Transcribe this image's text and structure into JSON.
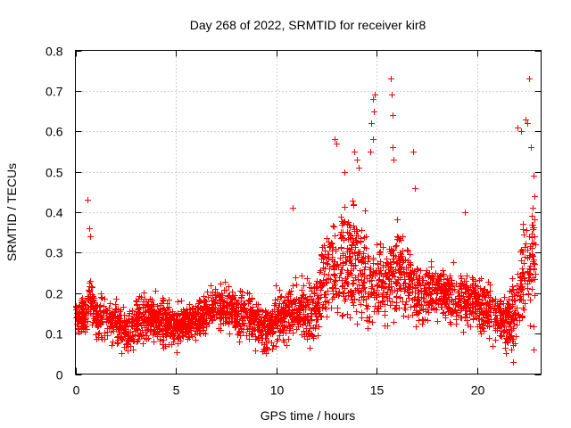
{
  "chart_data": {
    "type": "scatter",
    "title": "Day 268 of 2022, SRMTID for receiver kir8",
    "xlabel": "GPS time / hours",
    "ylabel": "SRMTID / TECUs",
    "xlim": [
      0,
      23.2
    ],
    "ylim": [
      0,
      0.8
    ],
    "xticks": [
      0,
      5,
      10,
      15,
      20
    ],
    "yticks": [
      0,
      0.1,
      0.2,
      0.3,
      0.4,
      0.5,
      0.6,
      0.7,
      0.8
    ],
    "grid": true,
    "marker": "+",
    "color": "#ff0000",
    "series": [
      {
        "name": "SRMTID",
        "trend": [
          [
            0.0,
            0.14
          ],
          [
            0.5,
            0.14
          ],
          [
            0.7,
            0.2
          ],
          [
            1.0,
            0.14
          ],
          [
            2.0,
            0.13
          ],
          [
            2.5,
            0.1
          ],
          [
            3.0,
            0.13
          ],
          [
            4.0,
            0.14
          ],
          [
            5.0,
            0.12
          ],
          [
            6.0,
            0.13
          ],
          [
            7.0,
            0.17
          ],
          [
            8.0,
            0.15
          ],
          [
            9.0,
            0.13
          ],
          [
            9.5,
            0.11
          ],
          [
            10.0,
            0.14
          ],
          [
            11.0,
            0.16
          ],
          [
            11.5,
            0.14
          ],
          [
            12.0,
            0.17
          ],
          [
            12.5,
            0.25
          ],
          [
            13.0,
            0.28
          ],
          [
            14.0,
            0.28
          ],
          [
            14.5,
            0.24
          ],
          [
            15.0,
            0.22
          ],
          [
            15.5,
            0.23
          ],
          [
            16.0,
            0.26
          ],
          [
            17.0,
            0.2
          ],
          [
            18.0,
            0.2
          ],
          [
            19.0,
            0.18
          ],
          [
            20.0,
            0.18
          ],
          [
            21.0,
            0.14
          ],
          [
            21.5,
            0.12
          ],
          [
            22.0,
            0.17
          ],
          [
            22.5,
            0.28
          ],
          [
            22.9,
            0.3
          ]
        ],
        "spread": [
          [
            0.0,
            0.04
          ],
          [
            2.0,
            0.05
          ],
          [
            5.0,
            0.05
          ],
          [
            7.0,
            0.05
          ],
          [
            10.0,
            0.06
          ],
          [
            12.0,
            0.07
          ],
          [
            12.5,
            0.1
          ],
          [
            13.0,
            0.12
          ],
          [
            14.0,
            0.13
          ],
          [
            15.0,
            0.1
          ],
          [
            16.0,
            0.1
          ],
          [
            17.0,
            0.07
          ],
          [
            18.0,
            0.06
          ],
          [
            20.0,
            0.06
          ],
          [
            21.5,
            0.06
          ],
          [
            22.0,
            0.1
          ],
          [
            22.9,
            0.14
          ]
        ],
        "n_points": 2900,
        "points": [
          [
            0.6,
            0.43
          ],
          [
            0.7,
            0.36
          ],
          [
            0.75,
            0.34
          ],
          [
            10.8,
            0.41
          ],
          [
            12.9,
            0.58
          ],
          [
            13.0,
            0.57
          ],
          [
            13.4,
            0.5
          ],
          [
            13.9,
            0.55
          ],
          [
            14.0,
            0.53
          ],
          [
            14.1,
            0.51
          ],
          [
            14.8,
            0.68
          ],
          [
            14.85,
            0.65
          ],
          [
            14.9,
            0.69
          ],
          [
            14.75,
            0.62
          ],
          [
            14.8,
            0.58
          ],
          [
            14.7,
            0.55
          ],
          [
            15.7,
            0.73
          ],
          [
            15.75,
            0.69
          ],
          [
            15.8,
            0.64
          ],
          [
            15.8,
            0.56
          ],
          [
            15.85,
            0.53
          ],
          [
            16.8,
            0.55
          ],
          [
            16.9,
            0.46
          ],
          [
            19.4,
            0.4
          ],
          [
            22.0,
            0.61
          ],
          [
            22.2,
            0.6
          ],
          [
            22.4,
            0.63
          ],
          [
            22.5,
            0.62
          ],
          [
            22.6,
            0.73
          ],
          [
            22.7,
            0.56
          ],
          [
            22.8,
            0.49
          ],
          [
            22.8,
            0.06
          ],
          [
            21.8,
            0.03
          ],
          [
            21.5,
            0.08
          ]
        ]
      }
    ]
  }
}
